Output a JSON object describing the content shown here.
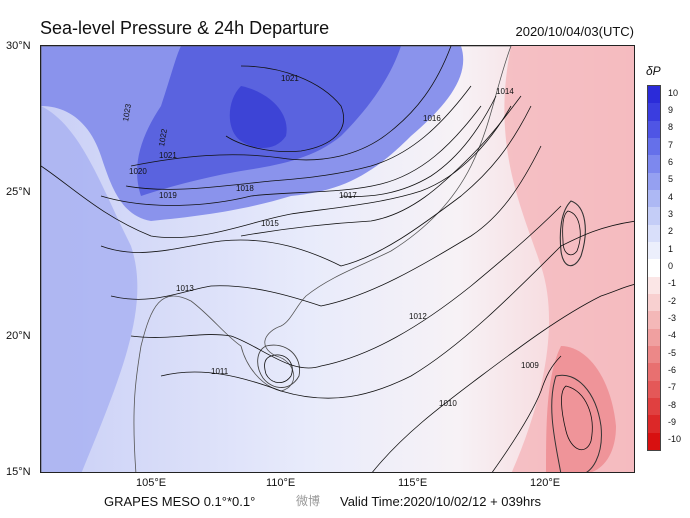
{
  "header": {
    "title": "Sea-level Pressure & 24h Departure",
    "valid_time": "2020/10/04/03(UTC)"
  },
  "footer": {
    "model": "GRAPES MESO  0.1°*0.1°",
    "valid": "Valid Time:2020/10/02/12 + 039hrs",
    "watermark": "微博"
  },
  "axes": {
    "lat_labels": [
      "30°N",
      "25°N",
      "20°N",
      "15°N"
    ],
    "lon_labels": [
      "105°E",
      "110°E",
      "115°E",
      "120°E"
    ]
  },
  "legend": {
    "title": "δP",
    "levels": [
      "10",
      "9",
      "8",
      "7",
      "6",
      "5",
      "4",
      "3",
      "2",
      "1",
      "0",
      "-1",
      "-2",
      "-3",
      "-4",
      "-5",
      "-6",
      "-7",
      "-8",
      "-9",
      "-10"
    ],
    "colors": [
      "#2b2bd9",
      "#3a3ddf",
      "#4f55e5",
      "#6570ea",
      "#7d88ee",
      "#95a0f1",
      "#adb8f4",
      "#c4cdf7",
      "#d9dffa",
      "#eceffc",
      "#ffffff",
      "#fbe6e6",
      "#f8d0d0",
      "#f4b8b8",
      "#f0a0a0",
      "#ec8888",
      "#e87070",
      "#e45858",
      "#e04040",
      "#dc2828",
      "#d81010"
    ]
  },
  "isobars": [
    {
      "label": "1021"
    },
    {
      "label": "1023"
    },
    {
      "label": "1022"
    },
    {
      "label": "1021"
    },
    {
      "label": "1020"
    },
    {
      "label": "1019"
    },
    {
      "label": "1018"
    },
    {
      "label": "1017"
    },
    {
      "label": "1016"
    },
    {
      "label": "1015"
    },
    {
      "label": "1014"
    },
    {
      "label": "1013"
    },
    {
      "label": "1012"
    },
    {
      "label": "1011"
    },
    {
      "label": "1010"
    },
    {
      "label": "1009"
    }
  ]
}
